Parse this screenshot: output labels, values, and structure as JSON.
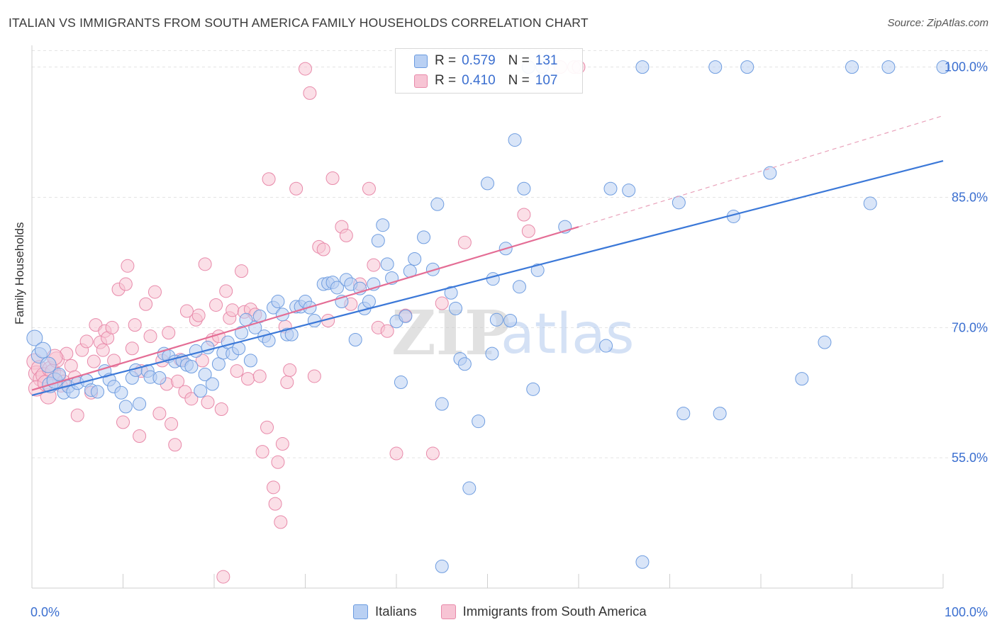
{
  "title": "ITALIAN VS IMMIGRANTS FROM SOUTH AMERICA FAMILY HOUSEHOLDS CORRELATION CHART",
  "source": "Source: ZipAtlas.com",
  "watermark": "ZIPatlas",
  "legend": {
    "r_label": "R =",
    "n_label": "N =",
    "rows": [
      {
        "r": "0.579",
        "n": "131",
        "color": "#6b9be0",
        "fill": "#b9d0f3"
      },
      {
        "r": "0.410",
        "n": "107",
        "color": "#e88aaa",
        "fill": "#f7c4d4"
      }
    ]
  },
  "bottom_legend": [
    "Italians",
    "Immigrants from South America"
  ],
  "chart_data": {
    "type": "scatter",
    "title": "ITALIAN VS IMMIGRANTS FROM SOUTH AMERICA FAMILY HOUSEHOLDS CORRELATION CHART",
    "xlabel": "",
    "ylabel": "Family Households",
    "xlim": [
      0,
      100
    ],
    "ylim": [
      40,
      102.5
    ],
    "x_tick_labels": [
      "0.0%",
      "100.0%"
    ],
    "y_ticks": [
      55,
      70,
      85,
      100
    ],
    "y_tick_labels": [
      "55.0%",
      "70.0%",
      "85.0%",
      "100.0%"
    ],
    "grid": "horizontal dashed",
    "legend_position": "top-center",
    "series": [
      {
        "name": "Italians",
        "color": "#3b78d8",
        "trend": {
          "x": [
            0,
            100
          ],
          "y": [
            62.2,
            89.2
          ]
        },
        "points": [
          [
            0.3,
            68.8
          ],
          [
            0.8,
            66.8
          ],
          [
            1.2,
            67.4
          ],
          [
            1.8,
            65.7
          ],
          [
            2.0,
            63.4
          ],
          [
            2.5,
            63.9
          ],
          [
            3.0,
            64.6
          ],
          [
            3.5,
            62.5
          ],
          [
            4.0,
            63.2
          ],
          [
            4.5,
            62.6
          ],
          [
            5.0,
            63.6
          ],
          [
            6.0,
            63.9
          ],
          [
            6.5,
            62.8
          ],
          [
            7.2,
            62.6
          ],
          [
            8.0,
            65.0
          ],
          [
            8.5,
            64.0
          ],
          [
            9.0,
            63.2
          ],
          [
            9.8,
            62.5
          ],
          [
            10.3,
            60.9
          ],
          [
            11.0,
            64.2
          ],
          [
            11.4,
            65.1
          ],
          [
            11.8,
            61.2
          ],
          [
            12.7,
            65.0
          ],
          [
            13.0,
            64.3
          ],
          [
            14.0,
            64.2
          ],
          [
            14.5,
            67.0
          ],
          [
            15.0,
            66.7
          ],
          [
            15.7,
            66.1
          ],
          [
            16.5,
            66.2
          ],
          [
            17.0,
            65.7
          ],
          [
            17.5,
            65.5
          ],
          [
            18.0,
            67.3
          ],
          [
            18.5,
            62.7
          ],
          [
            19.0,
            64.6
          ],
          [
            19.3,
            67.7
          ],
          [
            19.8,
            63.5
          ],
          [
            20.5,
            65.8
          ],
          [
            21.0,
            67.1
          ],
          [
            21.5,
            68.3
          ],
          [
            22.0,
            67.0
          ],
          [
            22.7,
            67.6
          ],
          [
            23.0,
            69.4
          ],
          [
            23.5,
            70.9
          ],
          [
            24.0,
            66.2
          ],
          [
            24.5,
            70.0
          ],
          [
            25.0,
            71.3
          ],
          [
            25.5,
            69.0
          ],
          [
            26.0,
            68.5
          ],
          [
            26.5,
            72.3
          ],
          [
            27.0,
            73.0
          ],
          [
            27.5,
            71.5
          ],
          [
            28.0,
            69.2
          ],
          [
            28.5,
            69.2
          ],
          [
            29.0,
            72.4
          ],
          [
            29.5,
            72.4
          ],
          [
            30.0,
            73.0
          ],
          [
            30.5,
            72.3
          ],
          [
            31.0,
            70.8
          ],
          [
            32.0,
            75.0
          ],
          [
            32.5,
            75.1
          ],
          [
            33.0,
            75.2
          ],
          [
            33.5,
            74.6
          ],
          [
            34.0,
            73.0
          ],
          [
            34.5,
            75.5
          ],
          [
            35.0,
            75.0
          ],
          [
            35.5,
            68.6
          ],
          [
            36.0,
            74.5
          ],
          [
            36.5,
            72.2
          ],
          [
            37.0,
            73.0
          ],
          [
            37.5,
            75.0
          ],
          [
            38.0,
            80.0
          ],
          [
            38.5,
            81.8
          ],
          [
            39.0,
            77.3
          ],
          [
            39.5,
            75.7
          ],
          [
            40.0,
            70.7
          ],
          [
            40.5,
            63.7
          ],
          [
            41.0,
            71.3
          ],
          [
            41.5,
            76.5
          ],
          [
            42.0,
            77.9
          ],
          [
            43.0,
            80.4
          ],
          [
            44.0,
            76.7
          ],
          [
            44.5,
            84.2
          ],
          [
            45.0,
            61.2
          ],
          [
            46.0,
            74.0
          ],
          [
            46.5,
            72.2
          ],
          [
            47.0,
            66.4
          ],
          [
            47.5,
            65.8
          ],
          [
            48.0,
            51.5
          ],
          [
            49.0,
            59.2
          ],
          [
            50.0,
            86.6
          ],
          [
            50.5,
            67.0
          ],
          [
            50.6,
            75.6
          ],
          [
            51.0,
            70.9
          ],
          [
            52.0,
            79.1
          ],
          [
            52.5,
            70.8
          ],
          [
            53.0,
            91.6
          ],
          [
            53.5,
            74.7
          ],
          [
            54.0,
            86.0
          ],
          [
            55.0,
            62.9
          ],
          [
            55.5,
            76.6
          ],
          [
            58.5,
            81.6
          ],
          [
            63.0,
            67.9
          ],
          [
            63.5,
            86.0
          ],
          [
            65.5,
            85.8
          ],
          [
            67.0,
            100.0
          ],
          [
            71.0,
            84.4
          ],
          [
            71.5,
            60.1
          ],
          [
            75.0,
            100.0
          ],
          [
            75.5,
            60.1
          ],
          [
            78.5,
            100.0
          ],
          [
            77.0,
            82.8
          ],
          [
            81.0,
            87.8
          ],
          [
            84.5,
            64.1
          ],
          [
            87.0,
            68.3
          ],
          [
            90.0,
            100.0
          ],
          [
            92.0,
            84.3
          ],
          [
            94.0,
            100.0
          ],
          [
            100.0,
            100.0
          ],
          [
            45.0,
            42.5
          ],
          [
            67.0,
            43.0
          ],
          [
            54.5,
            100.0
          ],
          [
            56.0,
            100.0
          ]
        ]
      },
      {
        "name": "Immigrants from South America",
        "color": "#e46d95",
        "trend": {
          "x": [
            0,
            60
          ],
          "y": [
            62.8,
            81.6
          ]
        },
        "trend_extension": {
          "x": [
            60,
            100
          ],
          "y": [
            81.6,
            94.4
          ]
        },
        "points": [
          [
            0.3,
            66.1
          ],
          [
            0.5,
            64.7
          ],
          [
            0.8,
            65.3
          ],
          [
            1.0,
            64.1
          ],
          [
            1.3,
            64.5
          ],
          [
            1.8,
            62.1
          ],
          [
            2.0,
            65.2
          ],
          [
            2.3,
            64.9
          ],
          [
            2.7,
            66.3
          ],
          [
            3.0,
            64.4
          ],
          [
            3.5,
            63.8
          ],
          [
            3.8,
            67.0
          ],
          [
            4.3,
            65.6
          ],
          [
            4.7,
            64.3
          ],
          [
            5.0,
            59.9
          ],
          [
            5.5,
            67.4
          ],
          [
            6.0,
            68.4
          ],
          [
            6.5,
            62.5
          ],
          [
            6.8,
            66.1
          ],
          [
            7.0,
            70.3
          ],
          [
            7.5,
            68.3
          ],
          [
            7.8,
            67.4
          ],
          [
            8.0,
            69.6
          ],
          [
            8.3,
            68.8
          ],
          [
            8.8,
            70.0
          ],
          [
            9.0,
            66.2
          ],
          [
            9.5,
            74.4
          ],
          [
            10.0,
            59.1
          ],
          [
            10.3,
            75.0
          ],
          [
            10.5,
            77.1
          ],
          [
            11.0,
            67.6
          ],
          [
            11.3,
            70.3
          ],
          [
            11.8,
            57.5
          ],
          [
            12.0,
            65.0
          ],
          [
            12.5,
            72.7
          ],
          [
            13.0,
            69.0
          ],
          [
            13.5,
            74.1
          ],
          [
            14.0,
            60.1
          ],
          [
            14.3,
            66.2
          ],
          [
            14.8,
            63.5
          ],
          [
            15.0,
            69.4
          ],
          [
            15.3,
            58.9
          ],
          [
            15.7,
            56.5
          ],
          [
            16.0,
            63.8
          ],
          [
            16.3,
            66.3
          ],
          [
            16.8,
            62.6
          ],
          [
            17.0,
            71.9
          ],
          [
            17.5,
            61.8
          ],
          [
            18.0,
            70.9
          ],
          [
            18.3,
            71.4
          ],
          [
            18.7,
            66.2
          ],
          [
            19.0,
            77.3
          ],
          [
            19.3,
            61.4
          ],
          [
            19.8,
            68.6
          ],
          [
            20.2,
            72.6
          ],
          [
            20.5,
            69.0
          ],
          [
            20.8,
            60.6
          ],
          [
            21.3,
            74.2
          ],
          [
            21.7,
            71.1
          ],
          [
            22.0,
            72.0
          ],
          [
            22.5,
            65.0
          ],
          [
            23.0,
            76.5
          ],
          [
            23.3,
            71.8
          ],
          [
            23.7,
            64.1
          ],
          [
            24.0,
            72.1
          ],
          [
            24.5,
            71.5
          ],
          [
            25.0,
            64.4
          ],
          [
            25.3,
            55.7
          ],
          [
            25.8,
            58.5
          ],
          [
            26.0,
            87.1
          ],
          [
            26.5,
            51.6
          ],
          [
            26.7,
            49.7
          ],
          [
            27.0,
            54.5
          ],
          [
            27.3,
            47.6
          ],
          [
            27.5,
            56.6
          ],
          [
            27.8,
            70.1
          ],
          [
            28.0,
            63.7
          ],
          [
            28.3,
            65.1
          ],
          [
            29.0,
            86.0
          ],
          [
            30.0,
            99.8
          ],
          [
            30.5,
            97.0
          ],
          [
            31.0,
            64.4
          ],
          [
            31.5,
            79.3
          ],
          [
            32.0,
            79.0
          ],
          [
            32.5,
            70.8
          ],
          [
            33.0,
            87.2
          ],
          [
            34.0,
            81.6
          ],
          [
            34.5,
            80.6
          ],
          [
            35.0,
            72.7
          ],
          [
            36.0,
            75.0
          ],
          [
            37.0,
            86.0
          ],
          [
            37.5,
            77.2
          ],
          [
            38.0,
            70.0
          ],
          [
            39.0,
            69.6
          ],
          [
            40.0,
            55.5
          ],
          [
            41.0,
            71.4
          ],
          [
            44.0,
            55.5
          ],
          [
            45.0,
            72.8
          ],
          [
            47.5,
            79.8
          ],
          [
            54.0,
            83.0
          ],
          [
            54.5,
            81.1
          ],
          [
            58.0,
            100.0
          ],
          [
            59.5,
            100.0
          ],
          [
            60.0,
            100.0
          ],
          [
            21.0,
            41.3
          ],
          [
            0.5,
            63.0
          ],
          [
            1.5,
            63.6
          ],
          [
            2.5,
            66.6
          ],
          [
            3.2,
            63.3
          ]
        ]
      }
    ]
  }
}
